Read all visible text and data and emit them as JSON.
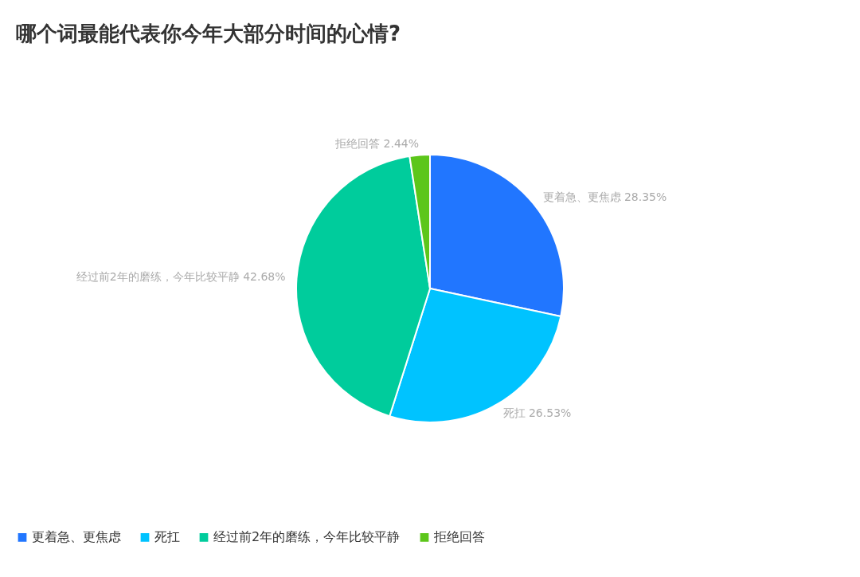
{
  "chart_data": {
    "type": "pie",
    "title": "哪个词最能代表你今年大部分时间的心情?",
    "categories": [
      "更着急、更焦虑",
      "死扛",
      "经过前2年的磨练，今年比较平静",
      "拒绝回答"
    ],
    "values": [
      28.35,
      26.53,
      42.68,
      2.44
    ],
    "value_labels": [
      "28.35%",
      "26.53%",
      "42.68%",
      "2.44%"
    ],
    "colors": [
      "#2176ff",
      "#00c3ff",
      "#00cc9c",
      "#5cc61a"
    ],
    "legend": "bottom"
  }
}
